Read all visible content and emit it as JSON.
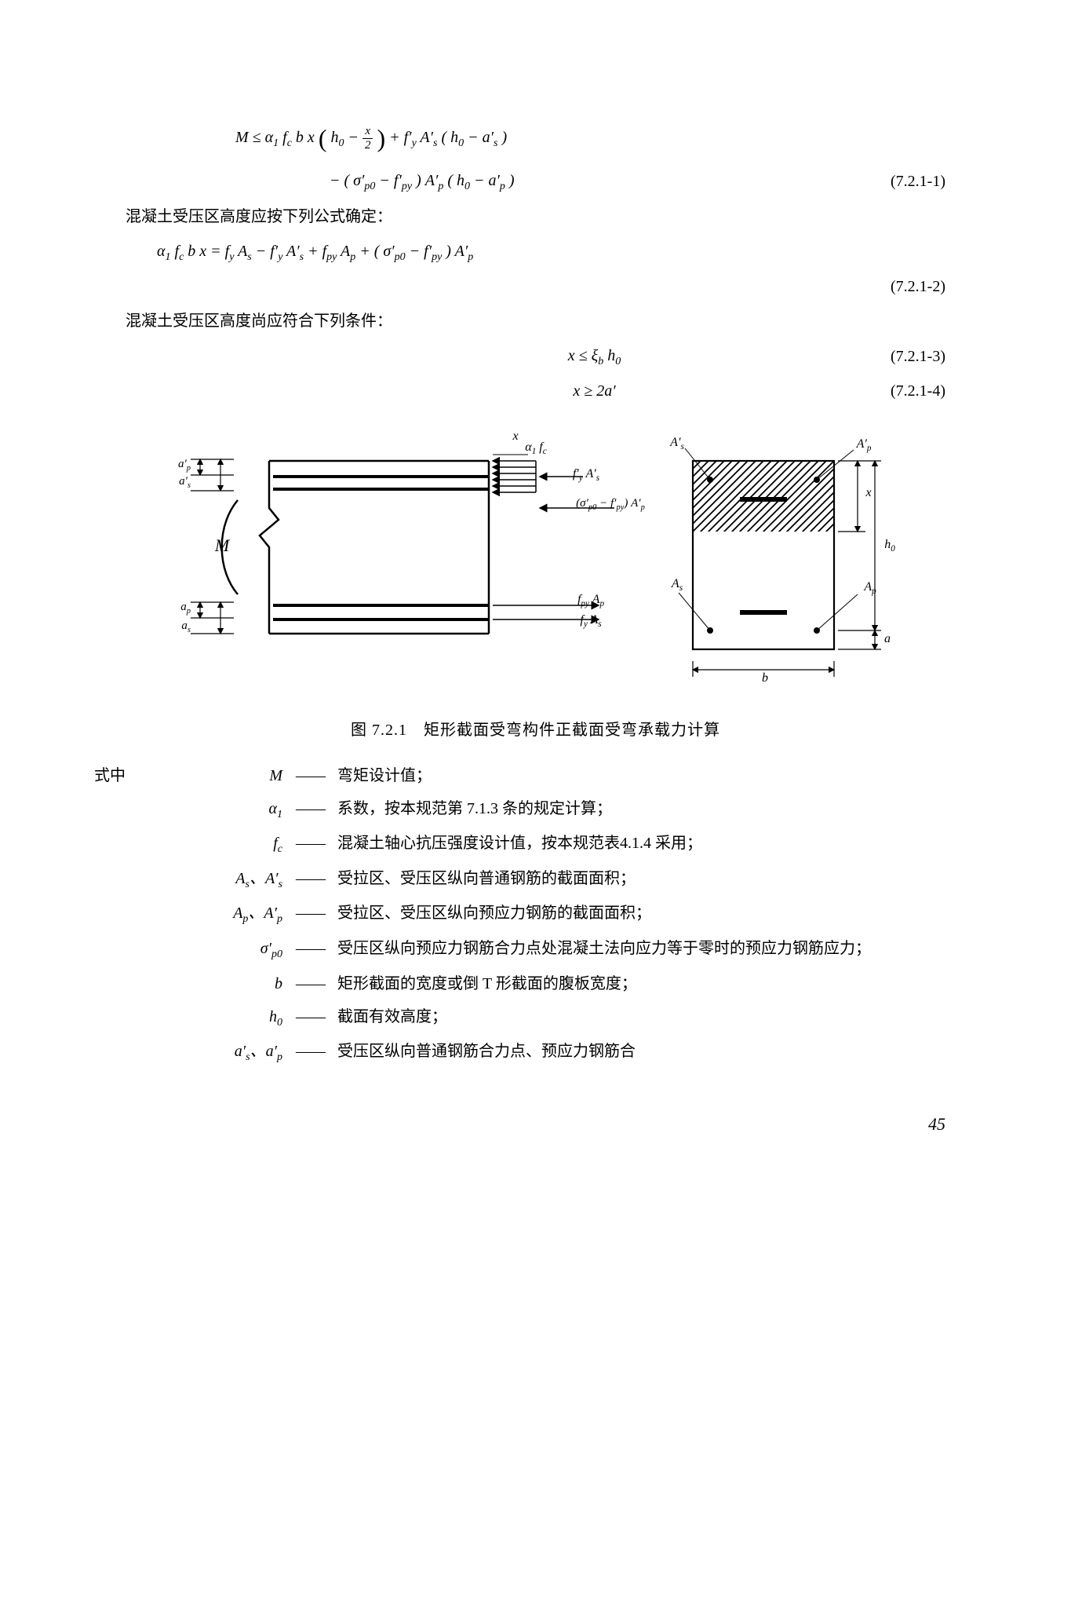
{
  "equations": {
    "eq1_line1": "M ≤ α<sub>1</sub> f<sub>c</sub> b x <span class='bigparen'>(</span> h<sub>0</sub> − <span class='frac'><span class='num'>x</span><span class='den'>2</span></span> <span class='bigparen'>)</span> + f′<sub>y</sub> A′<sub>s</sub> ( h<sub>0</sub> − a′<sub>s</sub> )",
    "eq1_line2": "− ( σ′<sub>p0</sub> − f′<sub>py</sub> ) A′<sub>p</sub> ( h<sub>0</sub> − a′<sub>p</sub> )",
    "eq1_num": "(7.2.1-1)",
    "para1": "混凝土受压区高度应按下列公式确定：",
    "eq2": "α<sub>1</sub> f<sub>c</sub> b x  =  f<sub>y</sub> A<sub>s</sub> − f′<sub>y</sub> A′<sub>s</sub> + f<sub>py</sub> A<sub>p</sub> + ( σ′<sub>p0</sub> − f′<sub>py</sub> ) A′<sub>p</sub>",
    "eq2_num": "(7.2.1-2)",
    "para2": "混凝土受压区高度尚应符合下列条件：",
    "eq3": "x ≤ ξ<sub>b</sub> h<sub>0</sub>",
    "eq3_num": "(7.2.1-3)",
    "eq4": "x ≥ 2a′",
    "eq4_num": "(7.2.1-4)"
  },
  "figure": {
    "labels": {
      "as_prime_dim": "a′<sub>s</sub>",
      "ap_prime_dim": "a′<sub>p</sub>",
      "ap_dim": "a<sub>p</sub>",
      "as_dim": "a<sub>s</sub>",
      "M": "M",
      "alpha_fc": "α<sub>1</sub> f<sub>c</sub>",
      "fy_As_prime": "f′<sub>y</sub> A′<sub>s</sub>",
      "sigma_term": "(σ′<sub>p0</sub> − f′<sub>py</sub>) A′<sub>p</sub>",
      "fpy_Ap": "f<sub>py</sub> A<sub>p</sub>",
      "fy_As": "f<sub>y</sub> A<sub>s</sub>",
      "As_prime": "A′<sub>s</sub>",
      "Ap_prime": "A′<sub>p</sub>",
      "As": "A<sub>s</sub>",
      "Ap": "A<sub>p</sub>",
      "b": "b",
      "x": "x",
      "h0": "h<sub>0</sub>",
      "a": "a"
    },
    "caption": "图 7.2.1　矩形截面受弯构件正截面受弯承载力计算"
  },
  "definitions": {
    "lead": "式中",
    "items": [
      {
        "sym": "M",
        "desc": "弯矩设计值；"
      },
      {
        "sym": "α<sub>1</sub>",
        "desc": "系数，按本规范第 7.1.3 条的规定计算；"
      },
      {
        "sym": "f<sub>c</sub>",
        "desc": "混凝土轴心抗压强度设计值，按本规范表4.1.4 采用；"
      },
      {
        "sym": "A<sub>s</sub>、A′<sub>s</sub>",
        "desc": "受拉区、受压区纵向普通钢筋的截面面积；"
      },
      {
        "sym": "A<sub>p</sub>、A′<sub>p</sub>",
        "desc": "受拉区、受压区纵向预应力钢筋的截面面积；"
      },
      {
        "sym": "σ′<sub>p0</sub>",
        "desc": "受压区纵向预应力钢筋合力点处混凝土法向应力等于零时的预应力钢筋应力；"
      },
      {
        "sym": "b",
        "desc": "矩形截面的宽度或倒 T 形截面的腹板宽度；"
      },
      {
        "sym": "h<sub>0</sub>",
        "desc": "截面有效高度；"
      },
      {
        "sym": "a′<sub>s</sub>、a′<sub>p</sub>",
        "desc": "受压区纵向普通钢筋合力点、预应力钢筋合"
      }
    ]
  },
  "page_number": "45",
  "colors": {
    "hatch": "#000",
    "bg": "#fff"
  }
}
